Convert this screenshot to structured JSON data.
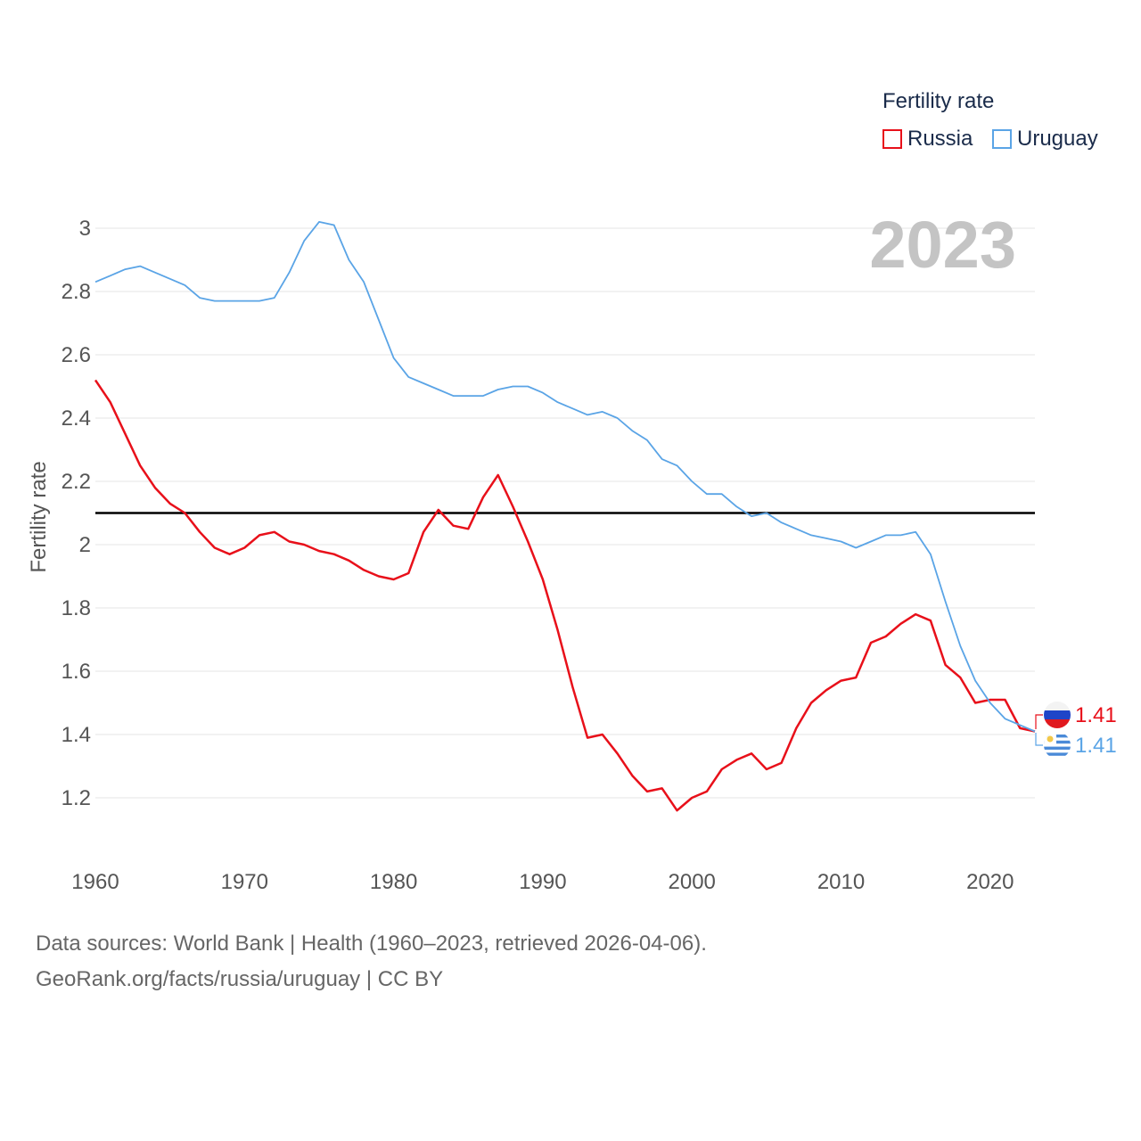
{
  "legend": {
    "title": "Fertility rate",
    "items": [
      {
        "label": "Russia",
        "color": "#e8101a"
      },
      {
        "label": "Uruguay",
        "color": "#5aa4e6"
      }
    ]
  },
  "big_year": "2023",
  "end_labels": {
    "russia": "1.41",
    "uruguay": "1.41"
  },
  "footer": {
    "line1": "Data sources: World Bank | Health (1960–2023, retrieved 2026-04-06).",
    "line2": "GeoRank.org/facts/russia/uruguay | CC BY"
  },
  "colors": {
    "russia": "#e8101a",
    "uruguay": "#5aa4e6",
    "grid": "#e6e6e6",
    "axis_text": "#555555",
    "reference": "#000000",
    "year": "#c4c4c4"
  },
  "chart_data": {
    "type": "line",
    "title": "",
    "xlabel": "",
    "ylabel": "Fertility rate",
    "xlim": [
      1960,
      2023
    ],
    "ylim": [
      1.0,
      3.1
    ],
    "x_ticks": [
      1960,
      1970,
      1980,
      1990,
      2000,
      2010,
      2020
    ],
    "y_ticks": [
      1.2,
      1.4,
      1.6,
      1.8,
      2,
      2.2,
      2.4,
      2.6,
      2.8,
      3
    ],
    "reference_line": 2.1,
    "x": [
      1960,
      1961,
      1962,
      1963,
      1964,
      1965,
      1966,
      1967,
      1968,
      1969,
      1970,
      1971,
      1972,
      1973,
      1974,
      1975,
      1976,
      1977,
      1978,
      1979,
      1980,
      1981,
      1982,
      1983,
      1984,
      1985,
      1986,
      1987,
      1988,
      1989,
      1990,
      1991,
      1992,
      1993,
      1994,
      1995,
      1996,
      1997,
      1998,
      1999,
      2000,
      2001,
      2002,
      2003,
      2004,
      2005,
      2006,
      2007,
      2008,
      2009,
      2010,
      2011,
      2012,
      2013,
      2014,
      2015,
      2016,
      2017,
      2018,
      2019,
      2020,
      2021,
      2022,
      2023
    ],
    "series": [
      {
        "name": "Russia",
        "values": [
          2.52,
          2.45,
          2.35,
          2.25,
          2.18,
          2.13,
          2.1,
          2.04,
          1.99,
          1.97,
          1.99,
          2.03,
          2.04,
          2.01,
          2.0,
          1.98,
          1.97,
          1.95,
          1.92,
          1.9,
          1.89,
          1.91,
          2.04,
          2.11,
          2.06,
          2.05,
          2.15,
          2.22,
          2.12,
          2.01,
          1.89,
          1.73,
          1.55,
          1.39,
          1.4,
          1.34,
          1.27,
          1.22,
          1.23,
          1.16,
          1.2,
          1.22,
          1.29,
          1.32,
          1.34,
          1.29,
          1.31,
          1.42,
          1.5,
          1.54,
          1.57,
          1.58,
          1.69,
          1.71,
          1.75,
          1.78,
          1.76,
          1.62,
          1.58,
          1.5,
          1.51,
          1.51,
          1.42,
          1.41
        ]
      },
      {
        "name": "Uruguay",
        "values": [
          2.83,
          2.85,
          2.87,
          2.88,
          2.86,
          2.84,
          2.82,
          2.78,
          2.77,
          2.77,
          2.77,
          2.77,
          2.78,
          2.86,
          2.96,
          3.02,
          3.01,
          2.9,
          2.83,
          2.71,
          2.59,
          2.53,
          2.51,
          2.49,
          2.47,
          2.47,
          2.47,
          2.49,
          2.5,
          2.5,
          2.48,
          2.45,
          2.43,
          2.41,
          2.42,
          2.4,
          2.36,
          2.33,
          2.27,
          2.25,
          2.2,
          2.16,
          2.16,
          2.12,
          2.09,
          2.1,
          2.07,
          2.05,
          2.03,
          2.02,
          2.01,
          1.99,
          2.01,
          2.03,
          2.03,
          2.04,
          1.97,
          1.82,
          1.68,
          1.57,
          1.5,
          1.45,
          1.43,
          1.41
        ]
      }
    ]
  }
}
